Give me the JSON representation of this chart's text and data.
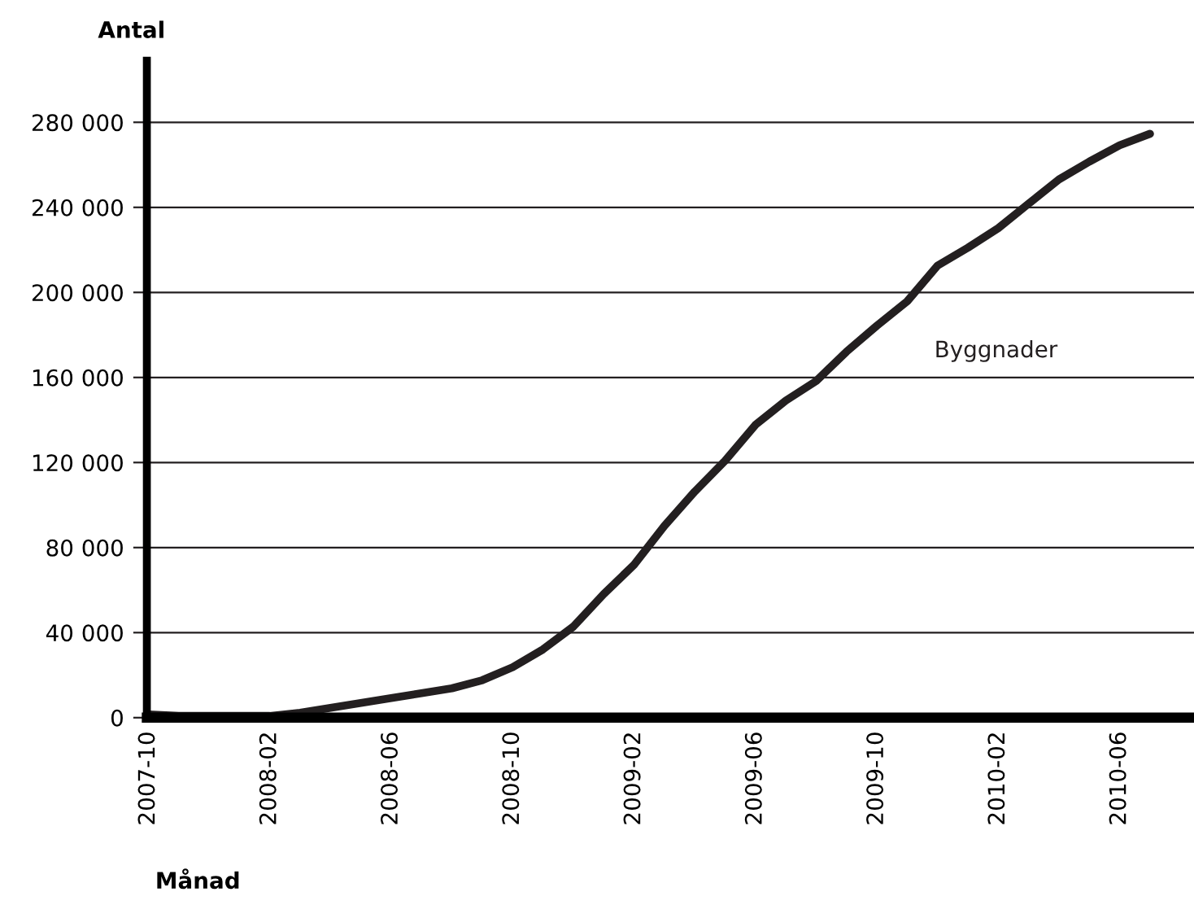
{
  "chart_data": {
    "type": "line",
    "xlabel": "Månad",
    "ylabel": "Antal",
    "categories": [
      "2007-10",
      null,
      null,
      null,
      "2008-02",
      null,
      null,
      null,
      "2008-06",
      null,
      null,
      null,
      "2008-10",
      null,
      null,
      null,
      "2009-02",
      null,
      null,
      null,
      "2009-06",
      null,
      null,
      null,
      "2009-10",
      null,
      null,
      null,
      "2010-02",
      null,
      null,
      null,
      "2010-06",
      null
    ],
    "series": [
      {
        "name": "Byggnader",
        "color": "#231f20",
        "values": [
          1500,
          800,
          800,
          800,
          800,
          2300,
          4600,
          6900,
          9200,
          11500,
          13800,
          17600,
          23700,
          32100,
          42800,
          58100,
          71900,
          90200,
          106300,
          120800,
          137700,
          149100,
          158300,
          172100,
          184300,
          195800,
          212600,
          221000,
          230200,
          241700,
          253100,
          261500,
          269200,
          274600
        ]
      }
    ],
    "ylim": [
      0,
      309000
    ],
    "yticks": [
      {
        "value": 0,
        "label": "0"
      },
      {
        "value": 40000,
        "label": "40 000"
      },
      {
        "value": 80000,
        "label": "80 000"
      },
      {
        "value": 120000,
        "label": "120 000"
      },
      {
        "value": 160000,
        "label": "160 000"
      },
      {
        "value": 200000,
        "label": "200 000"
      },
      {
        "value": 240000,
        "label": "240 000"
      },
      {
        "value": 280000,
        "label": "280 000"
      }
    ],
    "grid": "y",
    "legend": false,
    "marker": "none",
    "line_style": "solid"
  }
}
